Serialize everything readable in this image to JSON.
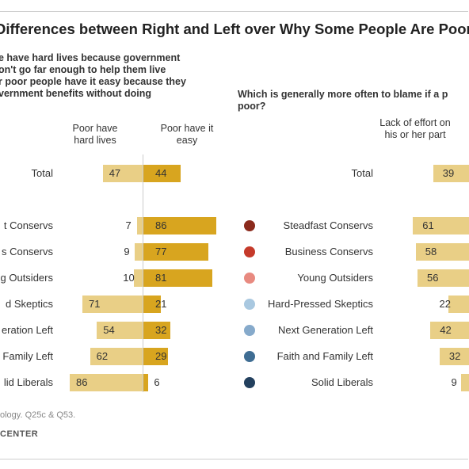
{
  "title": "Differences between Right and Left over Why Some People Are Poor",
  "left_question": [
    "e have hard lives because government",
    "on't go far enough to help them live",
    "r poor people have it easy because they",
    "vernment benefits without doing"
  ],
  "right_question": [
    "Which is generally more often to blame if a p",
    "poor?"
  ],
  "footer_source": "ology. Q25c & Q53.",
  "footer_org": "CENTER",
  "colors": {
    "light_bar": "#e9cf86",
    "dark_bar": "#d8a51f",
    "steadfast": "#8b2a1c",
    "business": "#c53a2a",
    "young": "#e88a80",
    "hardpressed": "#a9c8e0",
    "nextgen": "#86aacb",
    "faith": "#3f6d93",
    "solid": "#23405e"
  },
  "chart_data": [
    {
      "type": "bar",
      "categories": [
        "Total",
        "t Conservs",
        "s Conservs",
        "g Outsiders",
        "d Skeptics",
        "eration Left",
        "Family Left",
        "lid Liberals"
      ],
      "series": [
        {
          "name": "Poor have hard lives",
          "values": [
            47,
            7,
            9,
            10,
            71,
            54,
            62,
            86
          ]
        },
        {
          "name": "Poor have it easy",
          "values": [
            44,
            86,
            77,
            81,
            21,
            32,
            29,
            6
          ]
        }
      ],
      "column_headers": [
        "Poor have hard lives",
        "Poor have it easy"
      ]
    },
    {
      "type": "bar",
      "categories": [
        "Total",
        "Steadfast Conservs",
        "Business Conservs",
        "Young Outsiders",
        "Hard-Pressed Skeptics",
        "Next Generation Left",
        "Faith and Family Left",
        "Solid Liberals"
      ],
      "series": [
        {
          "name": "Lack of effort on his or her part",
          "values": [
            39,
            61,
            58,
            56,
            22,
            42,
            32,
            9
          ]
        }
      ],
      "column_headers": [
        "Lack of effort on his or her part"
      ]
    }
  ]
}
